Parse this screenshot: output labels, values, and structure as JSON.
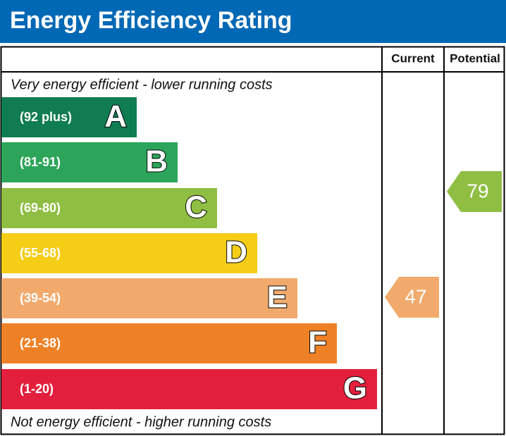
{
  "header": {
    "title": "Energy Efficiency Rating"
  },
  "table": {
    "columns": [
      "Current",
      "Potential"
    ],
    "top_note": "Very energy efficient - lower running costs",
    "bottom_note": "Not energy efficient - higher running costs",
    "bands": [
      {
        "range": "(92 plus)",
        "letter": "A",
        "color": "#107c52"
      },
      {
        "range": "(81-91)",
        "letter": "B",
        "color": "#2ca55a"
      },
      {
        "range": "(69-80)",
        "letter": "C",
        "color": "#8fbe42"
      },
      {
        "range": "(55-68)",
        "letter": "D",
        "color": "#f5cd17"
      },
      {
        "range": "(39-54)",
        "letter": "E",
        "color": "#f1aa6c"
      },
      {
        "range": "(21-38)",
        "letter": "F",
        "color": "#ee8126"
      },
      {
        "range": "(1-20)",
        "letter": "G",
        "color": "#e21f3c"
      }
    ],
    "current": {
      "value": 47,
      "color": "#f1aa6c"
    },
    "potential": {
      "value": 79,
      "color": "#8fbe42"
    }
  }
}
